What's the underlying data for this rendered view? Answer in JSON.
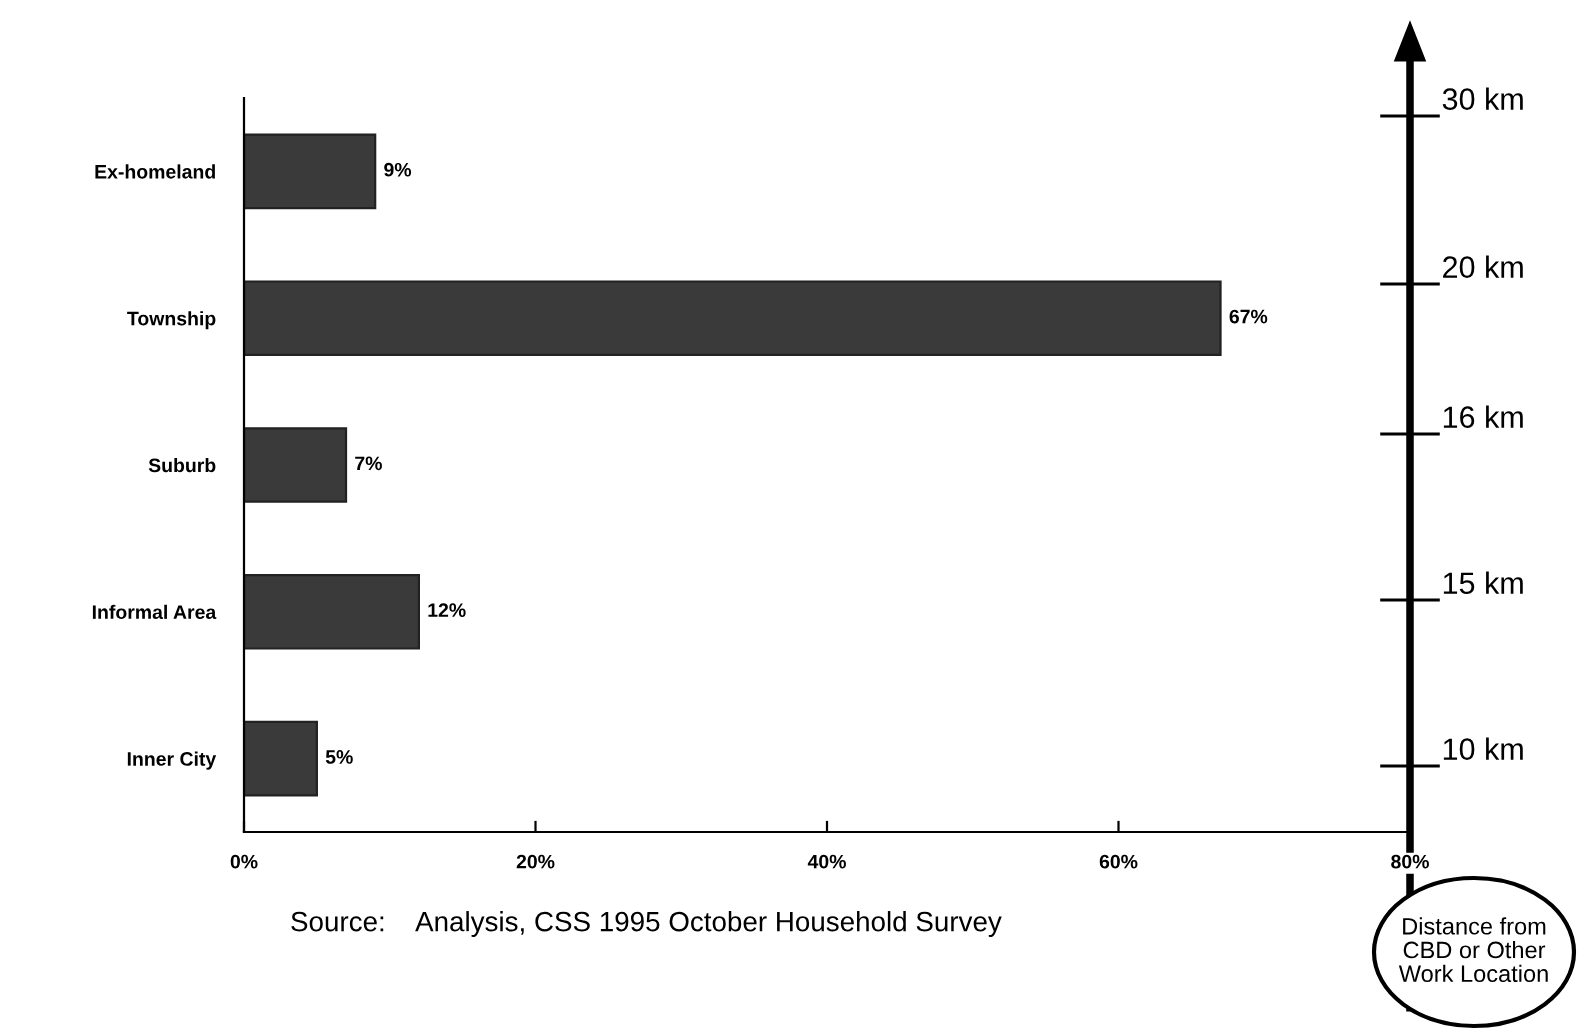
{
  "chart_data": {
    "type": "bar",
    "orientation": "horizontal",
    "categories": [
      "Ex-homeland",
      "Township",
      "Suburb",
      "Informal Area",
      "Inner City"
    ],
    "values": [
      9,
      67,
      7,
      12,
      5
    ],
    "color": "#3a3a3a",
    "value_labels": [
      "9%",
      "67%",
      "7%",
      "12%",
      "5%"
    ],
    "xlim": [
      0,
      80
    ],
    "xticks": [
      {
        "value": 0,
        "label": "0%"
      },
      {
        "value": 20,
        "label": "20%"
      },
      {
        "value": 40,
        "label": "40%"
      },
      {
        "value": 60,
        "label": "60%"
      },
      {
        "value": 80,
        "label": "80%"
      }
    ],
    "grid": false,
    "annotations": [
      "30 km",
      "20 km",
      "16 km",
      "15 km",
      "10 km",
      "Distance from\nCBD or Other\nWork Location",
      "Source:    Analysis, CSS 1995 October Household Survey"
    ]
  }
}
